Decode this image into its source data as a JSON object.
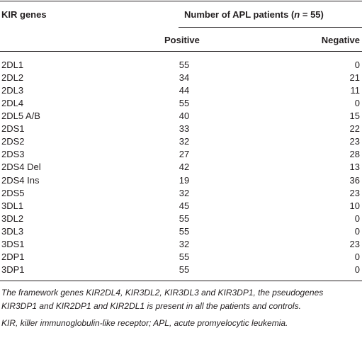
{
  "table": {
    "header": {
      "gene": "KIR genes",
      "group_parts": [
        "Number of APL patients (",
        "n",
        " = 55)"
      ],
      "positive": "Positive",
      "negative": "Negative"
    },
    "rows": [
      [
        "2DL1",
        55,
        0
      ],
      [
        "2DL2",
        34,
        21
      ],
      [
        "2DL3",
        44,
        11
      ],
      [
        "2DL4",
        55,
        0
      ],
      [
        "2DL5 A/B",
        40,
        15
      ],
      [
        "2DS1",
        33,
        22
      ],
      [
        "2DS2",
        32,
        23
      ],
      [
        "2DS3",
        27,
        28
      ],
      [
        "2DS4 Del",
        42,
        13
      ],
      [
        "2DS4 Ins",
        19,
        36
      ],
      [
        "2DS5",
        32,
        23
      ],
      [
        "3DL1",
        45,
        10
      ],
      [
        "3DL2",
        55,
        0
      ],
      [
        "3DL3",
        55,
        0
      ],
      [
        "3DS1",
        32,
        23
      ],
      [
        "2DP1",
        55,
        0
      ],
      [
        "3DP1",
        55,
        0
      ]
    ],
    "notes": [
      "The framework genes KIR2DL4, KIR3DL2, KIR3DL3 and KIR3DP1, the pseudogenes KIR3DP1 and KIR2DP1 and KIR2DL1 is present in all the patients and controls.",
      "KIR, killer immunoglobulin-like receptor; APL, acute promyelocytic leukemia."
    ]
  }
}
